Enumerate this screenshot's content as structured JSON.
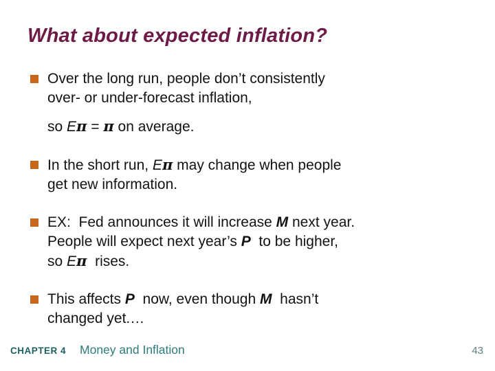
{
  "title": "What about expected inflation?",
  "bullets": [
    {
      "paras": [
        {
          "lines": [
            [
              {
                "t": "Over the long run, people don’t consistently"
              }
            ],
            [
              {
                "t": "over- or under-forecast inflation,"
              }
            ]
          ]
        },
        {
          "lines": [
            [
              {
                "t": "so "
              },
              {
                "t": "E",
                "s": "i"
              },
              {
                "t": "π",
                "s": "pi"
              },
              {
                "t": " = "
              },
              {
                "t": "π",
                "s": "pi"
              },
              {
                "t": " on average."
              }
            ]
          ]
        }
      ]
    },
    {
      "paras": [
        {
          "lines": [
            [
              {
                "t": "In the short run, "
              },
              {
                "t": "E",
                "s": "i"
              },
              {
                "t": "π",
                "s": "pi"
              },
              {
                "t": " may change when people"
              }
            ],
            [
              {
                "t": "get new information."
              }
            ]
          ]
        }
      ]
    },
    {
      "paras": [
        {
          "lines": [
            [
              {
                "t": "EX:  Fed announces it will increase "
              },
              {
                "t": "M",
                "s": "bi"
              },
              {
                "t": " next year."
              }
            ],
            [
              {
                "t": "People will expect next year’s "
              },
              {
                "t": "P",
                "s": "bi"
              },
              {
                "t": "  to be higher,"
              }
            ],
            [
              {
                "t": "so "
              },
              {
                "t": "E",
                "s": "i"
              },
              {
                "t": "π",
                "s": "pi"
              },
              {
                "t": "  rises."
              }
            ]
          ]
        }
      ]
    },
    {
      "paras": [
        {
          "lines": [
            [
              {
                "t": "This affects "
              },
              {
                "t": "P",
                "s": "bi"
              },
              {
                "t": "  now, even though "
              },
              {
                "t": "M",
                "s": "bi"
              },
              {
                "t": "  hasn’t"
              }
            ],
            [
              {
                "t": "changed yet.…"
              }
            ]
          ]
        }
      ]
    }
  ],
  "footer": {
    "chapter_label": "CHAPTER 4",
    "section_title": "Money and Inflation",
    "page_number": "43"
  },
  "colors": {
    "title_color": "#6E1A47",
    "bullet_color": "#C8671B",
    "chapter_color": "#1C5F5F",
    "section_color": "#2D7B7B",
    "page_color": "#5B8080"
  }
}
